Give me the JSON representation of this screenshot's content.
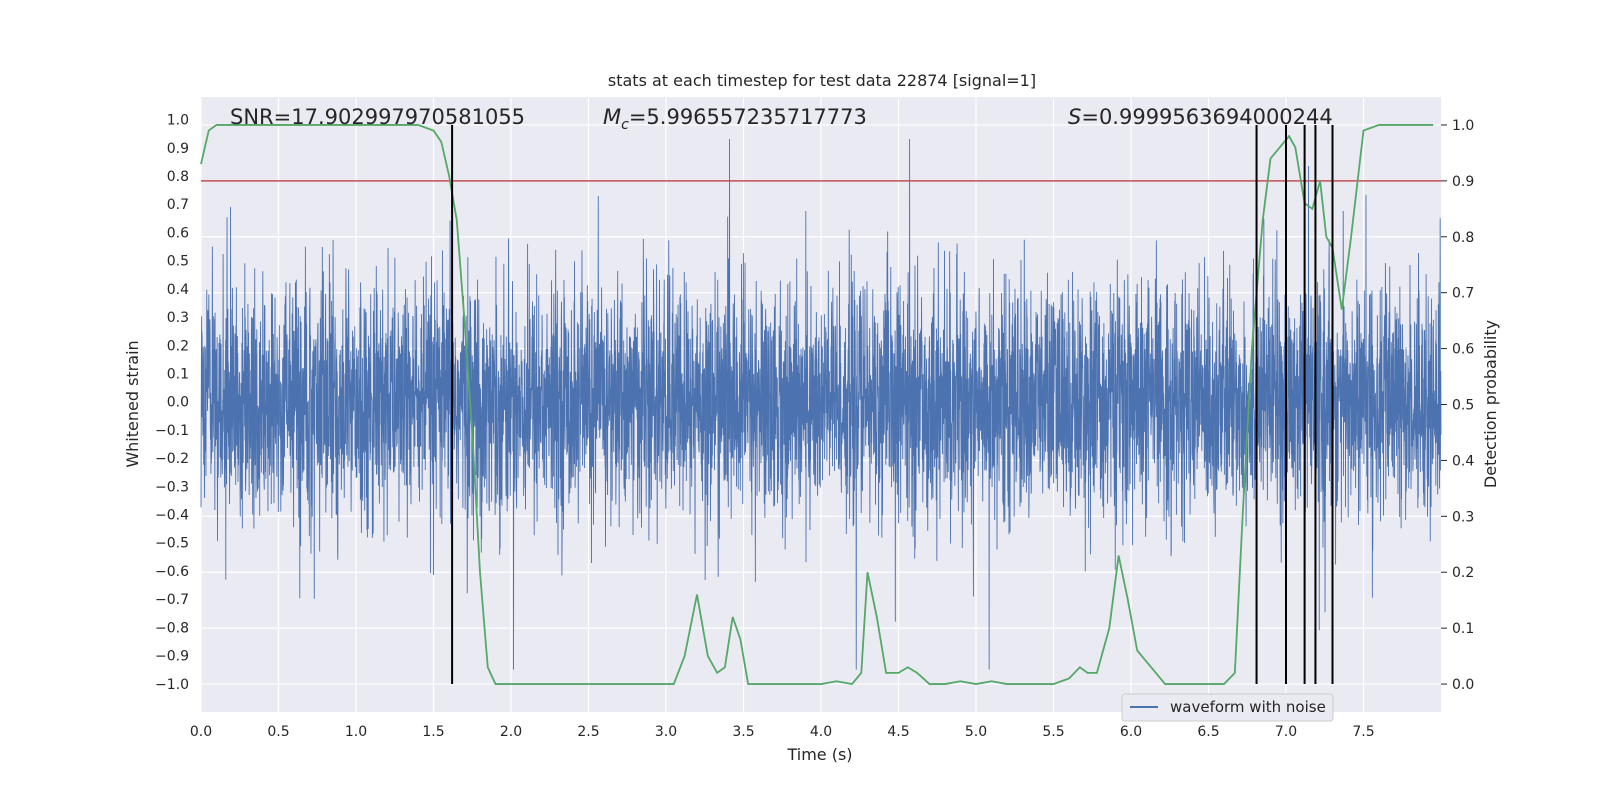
{
  "chart_data": {
    "type": "line",
    "title": "stats at each timestep for test data 22874 [signal=1]",
    "xlabel": "Time (s)",
    "ylabel": "Whitened strain",
    "y2label": "Detection probability",
    "xlim": [
      0.0,
      8.0
    ],
    "ylim": [
      -1.1,
      1.08
    ],
    "y2lim": [
      -0.05,
      1.05
    ],
    "xticks": [
      "0.0",
      "0.5",
      "1.0",
      "1.5",
      "2.0",
      "2.5",
      "3.0",
      "3.5",
      "4.0",
      "4.5",
      "5.0",
      "5.5",
      "6.0",
      "6.5",
      "7.0",
      "7.5"
    ],
    "yticks": [
      "1.0",
      "0.9",
      "0.8",
      "0.7",
      "0.6",
      "0.5",
      "0.4",
      "0.3",
      "0.2",
      "0.1",
      "0.0",
      "-0.1",
      "-0.2",
      "-0.3",
      "-0.4",
      "-0.5",
      "-0.6",
      "-0.7",
      "-0.8",
      "-0.9",
      "-1.0"
    ],
    "y2ticks": [
      "1.0",
      "0.9",
      "0.8",
      "0.7",
      "0.6",
      "0.5",
      "0.4",
      "0.3",
      "0.2",
      "0.1",
      "0.0"
    ],
    "annotations": {
      "snr": "SNR=17.902997970581055",
      "mc_symbol": "M",
      "mc_sub": "c",
      "mc_value": "=5.996557235717773",
      "s_symbol": "S",
      "s_value": "=0.9999563694000244"
    },
    "legend": {
      "label": "waveform with noise",
      "location": "lower right"
    },
    "threshold": {
      "value": 0.9,
      "axis": "y2",
      "color": "#c44e52"
    },
    "detection_lines": [
      1.62,
      6.81,
      7.0,
      7.12,
      7.19,
      7.3
    ],
    "waveform": {
      "name": "waveform with noise",
      "color": "#4c72b0",
      "envelope_typical": 0.45,
      "peak": 0.98,
      "trough": -1.0,
      "duration": 8.0
    },
    "probability": {
      "name": "detection probability",
      "color": "#55a868",
      "x": [
        0.0,
        0.05,
        0.1,
        0.2,
        0.4,
        0.6,
        0.8,
        1.0,
        1.2,
        1.4,
        1.5,
        1.55,
        1.6,
        1.65,
        1.7,
        1.75,
        1.8,
        1.85,
        1.9,
        1.95,
        2.0,
        2.1,
        2.2,
        2.4,
        2.6,
        2.8,
        2.9,
        3.0,
        3.05,
        3.12,
        3.2,
        3.27,
        3.33,
        3.38,
        3.43,
        3.48,
        3.53,
        3.6,
        3.8,
        4.0,
        4.1,
        4.2,
        4.26,
        4.3,
        4.36,
        4.42,
        4.5,
        4.56,
        4.62,
        4.7,
        4.8,
        4.9,
        5.0,
        5.1,
        5.2,
        5.3,
        5.4,
        5.5,
        5.55,
        5.6,
        5.67,
        5.72,
        5.78,
        5.86,
        5.92,
        5.98,
        6.04,
        6.1,
        6.16,
        6.22,
        6.28,
        6.35,
        6.45,
        6.55,
        6.6,
        6.67,
        6.72,
        6.78,
        6.85,
        6.9,
        6.96,
        7.02,
        7.06,
        7.12,
        7.17,
        7.22,
        7.26,
        7.3,
        7.36,
        7.42,
        7.5,
        7.6,
        7.7,
        7.8,
        7.9,
        7.95
      ],
      "y": [
        0.93,
        0.99,
        1.0,
        1.0,
        1.0,
        1.0,
        1.0,
        1.0,
        1.0,
        1.0,
        0.99,
        0.97,
        0.91,
        0.83,
        0.65,
        0.45,
        0.2,
        0.03,
        0.0,
        0.0,
        0.0,
        0.0,
        0.0,
        0.0,
        0.0,
        0.0,
        0.0,
        0.0,
        0.0,
        0.05,
        0.16,
        0.05,
        0.02,
        0.03,
        0.12,
        0.08,
        0.0,
        0.0,
        0.0,
        0.0,
        0.005,
        0.0,
        0.02,
        0.2,
        0.12,
        0.02,
        0.02,
        0.03,
        0.02,
        0.0,
        0.0,
        0.005,
        0.0,
        0.005,
        0.0,
        0.0,
        0.0,
        0.0,
        0.005,
        0.01,
        0.03,
        0.02,
        0.02,
        0.1,
        0.23,
        0.15,
        0.06,
        0.04,
        0.02,
        0.0,
        0.0,
        0.0,
        0.0,
        0.0,
        0.0,
        0.02,
        0.3,
        0.6,
        0.83,
        0.94,
        0.96,
        0.98,
        0.96,
        0.86,
        0.85,
        0.9,
        0.8,
        0.78,
        0.67,
        0.8,
        0.99,
        1.0,
        1.0,
        1.0,
        1.0,
        1.0
      ]
    }
  }
}
